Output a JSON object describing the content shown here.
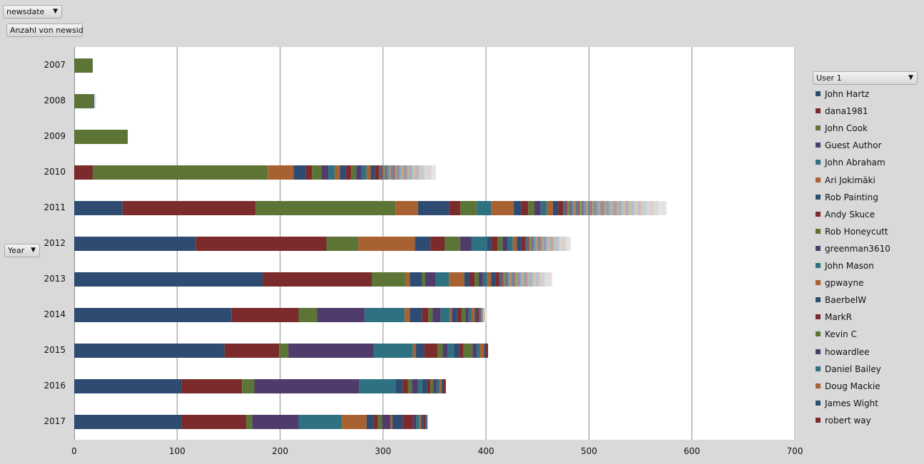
{
  "controls": {
    "newsdate_filter": "newsdate",
    "value_field": "Anzahl von newsid",
    "row_field": "Year",
    "series_field": "User 1"
  },
  "colors": [
    "#2e4c72",
    "#7b2b2b",
    "#5c7435",
    "#4f3b6c",
    "#2e7282",
    "#a86130"
  ],
  "chart_data": {
    "type": "bar",
    "orientation": "horizontal",
    "stacked": true,
    "title": "",
    "xlabel": "",
    "ylabel": "",
    "xlim": [
      0,
      700
    ],
    "x_ticks": [
      0,
      100,
      200,
      300,
      400,
      500,
      600,
      700
    ],
    "grid": true,
    "legend_position": "right",
    "categories": [
      "2007",
      "2008",
      "2009",
      "2010",
      "2011",
      "2012",
      "2013",
      "2014",
      "2015",
      "2016",
      "2017"
    ],
    "series": [
      {
        "name": "John Hartz",
        "values": [
          0,
          0,
          0,
          0,
          47,
          118,
          183,
          153,
          146,
          104,
          104
        ]
      },
      {
        "name": "dana1981",
        "values": [
          0,
          0,
          0,
          18,
          129,
          127,
          106,
          65,
          53,
          59,
          63
        ]
      },
      {
        "name": "John Cook",
        "values": [
          18,
          18,
          52,
          170,
          136,
          31,
          33,
          18,
          9,
          12,
          6
        ]
      },
      {
        "name": "Guest Author",
        "values": [
          0,
          0,
          0,
          0,
          0,
          0,
          0,
          46,
          83,
          102,
          45
        ]
      },
      {
        "name": "John Abraham",
        "values": [
          0,
          0,
          0,
          0,
          0,
          0,
          0,
          39,
          38,
          35,
          42
        ]
      },
      {
        "name": "Ari Jokimäki",
        "values": [
          0,
          0,
          0,
          25,
          22,
          55,
          4,
          5,
          3,
          0,
          24
        ]
      },
      {
        "name": "Rob Painting",
        "values": [
          0,
          0,
          0,
          12,
          30,
          15,
          12,
          12,
          8,
          7,
          7
        ]
      },
      {
        "name": "Andy Skuce",
        "values": [
          0,
          0,
          0,
          6,
          11,
          14,
          0,
          6,
          13,
          5,
          4
        ]
      },
      {
        "name": "Rob Honeycutt",
        "values": [
          0,
          0,
          0,
          9,
          16,
          15,
          3,
          4,
          5,
          4,
          4
        ]
      },
      {
        "name": "greenman3610",
        "values": [
          0,
          0,
          0,
          7,
          0,
          11,
          10,
          8,
          5,
          6,
          8
        ]
      },
      {
        "name": "John Mason",
        "values": [
          0,
          0,
          0,
          6,
          14,
          15,
          13,
          9,
          6,
          4,
          0
        ]
      },
      {
        "name": "gpwayne",
        "values": [
          0,
          0,
          0,
          5,
          22,
          0,
          15,
          2,
          0,
          0,
          2
        ]
      },
      {
        "name": "BaerbelW",
        "values": [
          0,
          0,
          0,
          6,
          7,
          4,
          5,
          5,
          5,
          5,
          10
        ]
      },
      {
        "name": "MarkR",
        "values": [
          0,
          0,
          0,
          5,
          7,
          6,
          5,
          4,
          4,
          3,
          10
        ]
      },
      {
        "name": "Kevin C",
        "values": [
          0,
          0,
          0,
          5,
          6,
          5,
          4,
          4,
          9,
          3,
          0
        ]
      },
      {
        "name": "howardlee",
        "values": [
          0,
          0,
          0,
          5,
          6,
          5,
          4,
          3,
          4,
          3,
          3
        ]
      },
      {
        "name": "Daniel Bailey",
        "values": [
          0,
          0,
          0,
          5,
          6,
          5,
          4,
          3,
          3,
          3,
          3
        ]
      },
      {
        "name": "Doug Mackie",
        "values": [
          0,
          0,
          0,
          4,
          6,
          4,
          4,
          3,
          4,
          2,
          2
        ]
      },
      {
        "name": "James Wight",
        "values": [
          0,
          0,
          0,
          4,
          5,
          4,
          4,
          2,
          2,
          2,
          2
        ]
      },
      {
        "name": "robert way",
        "values": [
          0,
          0,
          0,
          4,
          5,
          4,
          4,
          2,
          2,
          2,
          2
        ]
      }
    ],
    "other_contributors_total": [
      0,
      3,
      0,
      55,
      100,
      44,
      51,
      8,
      0,
      0,
      2
    ]
  }
}
